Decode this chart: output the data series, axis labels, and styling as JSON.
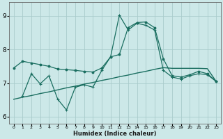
{
  "xlabel": "Humidex (Indice chaleur)",
  "xlim": [
    -0.5,
    23.5
  ],
  "ylim": [
    5.8,
    9.4
  ],
  "yticks": [
    6,
    7,
    8,
    9
  ],
  "xticks": [
    0,
    1,
    2,
    3,
    4,
    5,
    6,
    7,
    8,
    9,
    10,
    11,
    12,
    13,
    14,
    15,
    16,
    17,
    18,
    19,
    20,
    21,
    22,
    23
  ],
  "bg_color": "#cce8e8",
  "grid_color": "#aacccc",
  "line_color": "#1a6e60",
  "line1_x": [
    0,
    1,
    2,
    3,
    4,
    5,
    6,
    7,
    8,
    9,
    10,
    11,
    12,
    13,
    14,
    15,
    16,
    17,
    18,
    19,
    20,
    21,
    22,
    23
  ],
  "line1_y": [
    7.45,
    7.65,
    7.6,
    7.55,
    7.5,
    7.42,
    7.4,
    7.38,
    7.35,
    7.33,
    7.45,
    7.78,
    7.85,
    8.65,
    8.8,
    8.82,
    8.65,
    7.72,
    7.22,
    7.18,
    7.25,
    7.35,
    7.28,
    7.05
  ],
  "line2_x": [
    0,
    1,
    2,
    3,
    4,
    5,
    6,
    7,
    8,
    9,
    10,
    11,
    12,
    13,
    14,
    15,
    16,
    17,
    18,
    19,
    20,
    21,
    22,
    23
  ],
  "line2_y": [
    6.52,
    6.58,
    6.63,
    6.69,
    6.74,
    6.8,
    6.86,
    6.91,
    6.97,
    7.02,
    7.08,
    7.13,
    7.19,
    7.24,
    7.3,
    7.35,
    7.41,
    7.46,
    7.44,
    7.44,
    7.44,
    7.44,
    7.43,
    7.05
  ],
  "line3_x": [
    1,
    2,
    3,
    4,
    5,
    6,
    7,
    8,
    9,
    10,
    11,
    12,
    13,
    14,
    15,
    16,
    17,
    18,
    19,
    20,
    21,
    22,
    23
  ],
  "line3_y": [
    6.62,
    7.28,
    6.98,
    7.22,
    6.52,
    6.2,
    6.88,
    6.95,
    6.88,
    7.38,
    7.78,
    9.02,
    8.58,
    8.78,
    8.72,
    8.58,
    7.38,
    7.18,
    7.12,
    7.22,
    7.28,
    7.25,
    7.05
  ]
}
